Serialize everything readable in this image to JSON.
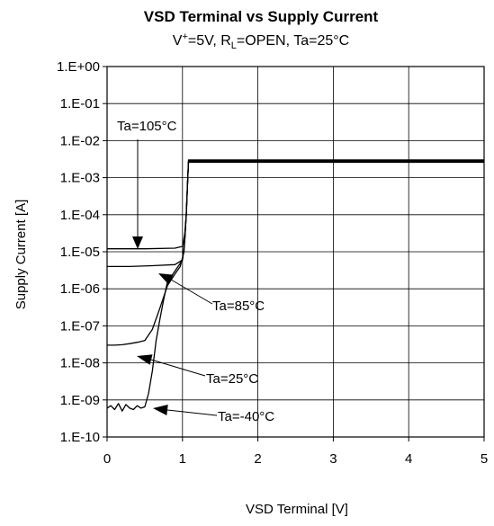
{
  "chart_data": {
    "type": "line",
    "title": "VSD Terminal vs Supply Current",
    "subtitle": {
      "prefix": "V",
      "prefix_sup": "+",
      "part2": "=5V, R",
      "part2_sub": "L",
      "part3": "=OPEN, Ta=25°C"
    },
    "xlabel": "VSD Terminal [V]",
    "ylabel": "Supply Current [A]",
    "xlim": [
      0,
      5
    ],
    "ylim": [
      1e-10,
      1
    ],
    "yscale": "log",
    "grid": true,
    "x_ticks": [
      {
        "v": 0,
        "label": "0"
      },
      {
        "v": 1,
        "label": "1"
      },
      {
        "v": 2,
        "label": "2"
      },
      {
        "v": 3,
        "label": "3"
      },
      {
        "v": 4,
        "label": "4"
      },
      {
        "v": 5,
        "label": "5"
      }
    ],
    "y_ticks": [
      {
        "v": 1,
        "label": "1.E+00"
      },
      {
        "v": 0.1,
        "label": "1.E-01"
      },
      {
        "v": 0.01,
        "label": "1.E-02"
      },
      {
        "v": 0.001,
        "label": "1.E-03"
      },
      {
        "v": 0.0001,
        "label": "1.E-04"
      },
      {
        "v": 1e-05,
        "label": "1.E-05"
      },
      {
        "v": 1e-06,
        "label": "1.E-06"
      },
      {
        "v": 1e-07,
        "label": "1.E-07"
      },
      {
        "v": 1e-08,
        "label": "1.E-08"
      },
      {
        "v": 1e-09,
        "label": "1.E-09"
      },
      {
        "v": 1e-10,
        "label": "1.E-10"
      }
    ],
    "series": [
      {
        "name": "Ta=105°C",
        "x": [
          0,
          0.5,
          0.9,
          1.0,
          1.03,
          1.05,
          1.07,
          1.08,
          5
        ],
        "y": [
          1.2e-05,
          1.2e-05,
          1.25e-05,
          1.4e-05,
          3e-05,
          0.0001,
          0.001,
          0.003,
          0.003
        ]
      },
      {
        "name": "Ta=85°C",
        "x": [
          0,
          0.3,
          0.6,
          0.9,
          1.0,
          1.03,
          1.05,
          1.07,
          1.08,
          5
        ],
        "y": [
          4e-06,
          4e-06,
          4.2e-06,
          4.5e-06,
          6e-06,
          2e-05,
          0.0001,
          0.001,
          0.0028,
          0.0028
        ]
      },
      {
        "name": "Ta=25°C",
        "x": [
          0,
          0.1,
          0.2,
          0.3,
          0.4,
          0.5,
          0.6,
          0.7,
          0.8,
          0.9,
          0.97,
          1.02,
          1.05,
          1.07,
          1.08,
          5
        ],
        "y": [
          3e-08,
          3e-08,
          3.1e-08,
          3.3e-08,
          3.6e-08,
          4e-08,
          8e-08,
          3e-07,
          1.2e-06,
          2.5e-06,
          4e-06,
          1e-05,
          0.0001,
          0.001,
          0.0027,
          0.0027
        ]
      },
      {
        "name": "Ta=-40°C",
        "x": [
          0,
          0.05,
          0.1,
          0.15,
          0.2,
          0.25,
          0.3,
          0.35,
          0.4,
          0.45,
          0.5,
          0.55,
          0.6,
          0.65,
          0.7,
          0.75,
          0.8,
          0.9,
          1.0,
          1.03,
          1.05,
          1.07,
          1.08,
          5
        ],
        "y": [
          6e-10,
          7e-10,
          5.5e-10,
          8e-10,
          5e-10,
          7.5e-10,
          6e-10,
          5.5e-10,
          7e-10,
          6e-10,
          6.5e-10,
          1.5e-09,
          6e-09,
          4e-08,
          1.5e-07,
          5e-07,
          1.5e-06,
          3e-06,
          6e-06,
          2e-05,
          0.0001,
          0.001,
          0.0026,
          0.0026
        ]
      }
    ],
    "annotations": [
      {
        "text": "Ta=105°C",
        "target_series": "Ta=105°C"
      },
      {
        "text": "Ta=85°C",
        "target_series": "Ta=85°C"
      },
      {
        "text": "Ta=25°C",
        "target_series": "Ta=25°C"
      },
      {
        "text": "Ta=-40°C",
        "target_series": "Ta=-40°C"
      }
    ]
  }
}
